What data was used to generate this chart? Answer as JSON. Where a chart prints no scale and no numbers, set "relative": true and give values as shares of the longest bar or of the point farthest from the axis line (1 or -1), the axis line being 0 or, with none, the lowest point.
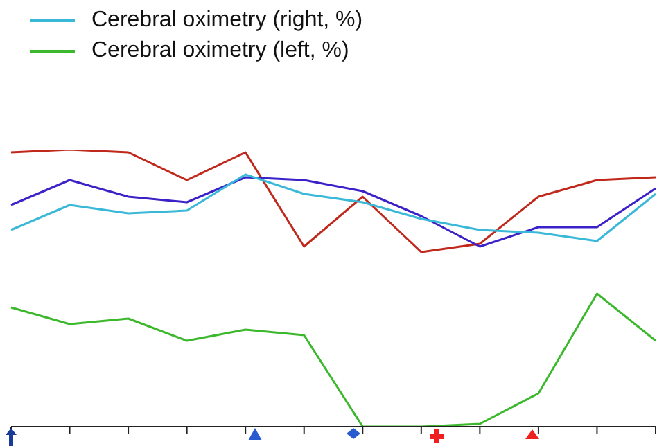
{
  "chart_data": {
    "type": "line",
    "relative": true,
    "legend": "top left",
    "marker": "none",
    "categories": [
      null,
      null,
      null,
      null,
      null,
      null,
      null,
      null,
      null,
      null,
      null,
      null
    ],
    "series": [
      {
        "color": "#c0281c",
        "values": [
          0.99,
          1,
          0.99,
          0.89,
          0.99,
          0.65,
          0.83,
          0.63,
          0.66,
          0.83,
          0.89,
          0.9
        ]
      },
      {
        "color": "#3a22c8",
        "values": [
          0.8,
          0.89,
          0.83,
          0.81,
          0.9,
          0.89,
          0.85,
          0.76,
          0.65,
          0.72,
          0.72,
          0.86
        ]
      },
      {
        "name": "Cerebral oximetry (right, %)",
        "color": "#3ab8d8",
        "values": [
          0.71,
          0.8,
          0.77,
          0.78,
          0.91,
          0.84,
          0.81,
          0.75,
          0.71,
          0.7,
          0.67,
          0.84
        ]
      },
      {
        "name": "Cerebral oximetry (left, %)",
        "color": "#3cb82c",
        "values": [
          0.43,
          0.37,
          0.39,
          0.31,
          0.35,
          0.33,
          0,
          0,
          0.01,
          0.12,
          0.48,
          0.31
        ]
      }
    ]
  }
}
